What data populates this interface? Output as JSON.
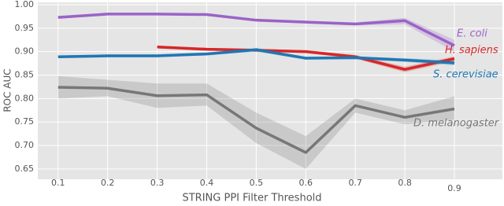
{
  "chart_data": {
    "type": "line",
    "x_label": "STRING PPI Filter Threshold",
    "y_label": "ROC AUC",
    "x": [
      0.1,
      0.2,
      0.3,
      0.4,
      0.5,
      0.6,
      0.7,
      0.8,
      0.9
    ],
    "xlim": [
      0.059,
      0.997
    ],
    "xticks": [
      0.1,
      0.2,
      0.3,
      0.4,
      0.5,
      0.6,
      0.7,
      0.8,
      0.9
    ],
    "ylim": [
      0.628,
      1.005
    ],
    "yticks": [
      0.65,
      {
        "value": 0.7,
        "label": "0.70"
      },
      0.75,
      {
        "value": 0.8,
        "label": "0.80"
      },
      0.85,
      {
        "value": 0.9,
        "label": "0.90"
      },
      0.95,
      {
        "value": 1.0,
        "label": "1.00"
      }
    ],
    "grid": true,
    "series": [
      {
        "name": "E. coli",
        "color": "#9a63c8",
        "values": [
          0.973,
          0.98,
          0.98,
          0.979,
          0.967,
          0.963,
          0.959,
          0.966,
          0.913
        ],
        "lower": [
          0.97,
          0.978,
          0.978,
          0.977,
          0.964,
          0.96,
          0.956,
          0.958,
          0.9
        ],
        "upper": [
          0.976,
          0.982,
          0.982,
          0.981,
          0.97,
          0.966,
          0.962,
          0.972,
          0.925
        ]
      },
      {
        "name": "H. sapiens",
        "color": "#d62728",
        "values": [
          null,
          null,
          0.91,
          0.905,
          0.903,
          0.9,
          0.889,
          0.862,
          0.885
        ],
        "lower": [
          null,
          null,
          0.907,
          0.902,
          0.9,
          0.897,
          0.885,
          0.856,
          0.88
        ],
        "upper": [
          null,
          null,
          0.913,
          0.908,
          0.906,
          0.903,
          0.893,
          0.868,
          0.89
        ]
      },
      {
        "name": "S. cerevisiae",
        "color": "#1f77b4",
        "values": [
          0.889,
          0.891,
          0.891,
          0.895,
          0.904,
          0.886,
          0.887,
          0.882,
          0.876
        ],
        "lower": [
          0.886,
          0.888,
          0.888,
          0.892,
          0.9,
          0.883,
          0.884,
          0.878,
          0.871
        ],
        "upper": [
          0.892,
          0.894,
          0.894,
          0.898,
          0.908,
          0.889,
          0.89,
          0.886,
          0.881
        ]
      },
      {
        "name": "D. melanogaster",
        "color": "#777777",
        "values": [
          0.824,
          0.822,
          0.806,
          0.808,
          0.737,
          0.685,
          0.785,
          0.76,
          0.778
        ],
        "lower": [
          0.8,
          0.805,
          0.78,
          0.785,
          0.705,
          0.65,
          0.77,
          0.745,
          0.755
        ],
        "upper": [
          0.848,
          0.84,
          0.832,
          0.832,
          0.77,
          0.72,
          0.8,
          0.775,
          0.805
        ]
      }
    ]
  }
}
